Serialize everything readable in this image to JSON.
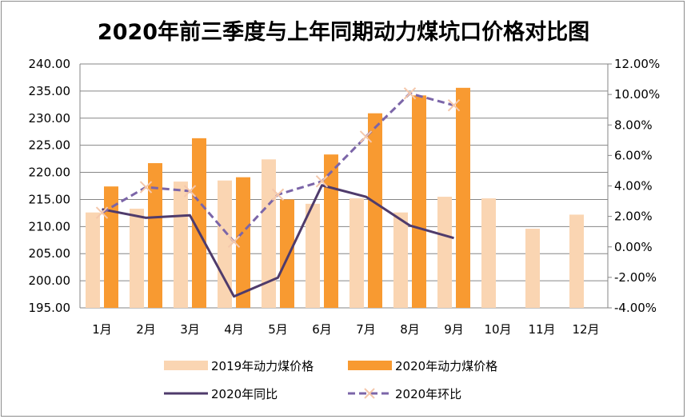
{
  "chart_data": {
    "type": "bar",
    "title": "2020年前三季度与上年同期动力煤坑口价格对比图",
    "categories": [
      "1月",
      "2月",
      "3月",
      "4月",
      "5月",
      "6月",
      "7月",
      "8月",
      "9月",
      "10月",
      "11月",
      "12月"
    ],
    "series": [
      {
        "name": "2019年动力煤价格",
        "type": "bar",
        "axis": "left",
        "color": "#fad5b2",
        "values": [
          212.6,
          213.3,
          218.3,
          218.5,
          222.4,
          214.2,
          215.2,
          212.6,
          215.5,
          215.2,
          209.6,
          212.2
        ]
      },
      {
        "name": "2020年动力煤价格",
        "type": "bar",
        "axis": "left",
        "color": "#f89a31",
        "values": [
          217.4,
          221.7,
          226.3,
          219.1,
          215.0,
          223.3,
          230.9,
          234.2,
          235.6,
          null,
          null,
          null
        ]
      },
      {
        "name": "2020年同比",
        "type": "line",
        "axis": "right",
        "color": "#4f3b6b",
        "style": "solid",
        "values": [
          2.47,
          1.91,
          2.07,
          -3.25,
          -2.02,
          4.04,
          3.29,
          1.4,
          0.58,
          null,
          null,
          null
        ]
      },
      {
        "name": "2020年环比",
        "type": "line",
        "axis": "right",
        "color": "#7b65a8",
        "style": "dashed",
        "marker": "x",
        "marker_color": "#f4c7ab",
        "values": [
          2.24,
          3.92,
          3.66,
          0.34,
          3.43,
          4.3,
          7.23,
          10.07,
          9.29,
          null,
          null,
          null
        ]
      }
    ],
    "y_left": {
      "min": 195,
      "max": 240,
      "step": 5,
      "ticks": [
        "240.00",
        "235.00",
        "230.00",
        "225.00",
        "220.00",
        "215.00",
        "210.00",
        "205.00",
        "200.00",
        "195.00"
      ]
    },
    "y_right": {
      "min": -4,
      "max": 12,
      "step": 2,
      "unit": "%",
      "ticks": [
        "12.00%",
        "10.00%",
        "8.00%",
        "6.00%",
        "4.00%",
        "2.00%",
        "0.00%",
        "-2.00%",
        "-4.00%"
      ]
    },
    "grid": true,
    "legend_position": "bottom"
  }
}
